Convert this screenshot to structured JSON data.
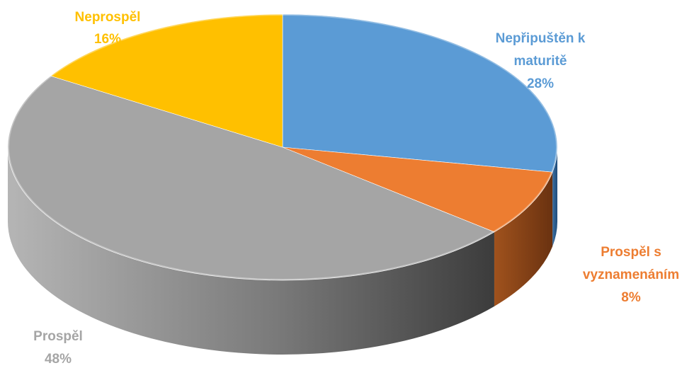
{
  "chart_data": {
    "type": "pie",
    "title": "",
    "slices": [
      {
        "label_lines": [
          "Nepřipuštěn k",
          "maturitě"
        ],
        "percent_label": "28%",
        "value": 28,
        "color": "#5B9BD5"
      },
      {
        "label_lines": [
          "Prospěl s",
          "vyznamenáním"
        ],
        "percent_label": "8%",
        "value": 8,
        "color": "#ED7D31"
      },
      {
        "label_lines": [
          "Prospěl"
        ],
        "percent_label": "48%",
        "value": 48,
        "color": "#A5A5A5"
      },
      {
        "label_lines": [
          "Neprospěl"
        ],
        "percent_label": "16%",
        "value": 16,
        "color": "#FFC000"
      }
    ],
    "style": "3d",
    "start_angle_deg": 0,
    "direction": "clockwise",
    "legend": "none"
  }
}
